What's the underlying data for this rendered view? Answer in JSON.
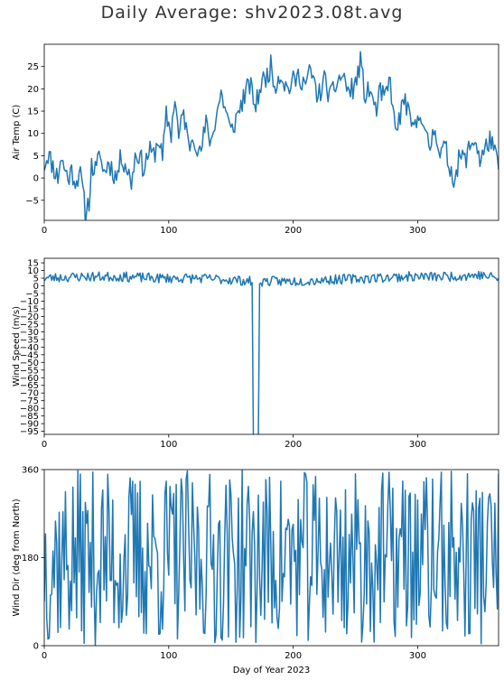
{
  "figure": {
    "title": "Daily Average: shv2023.08t.avg"
  },
  "colors": {
    "line": "#1f77b4",
    "axes": "#000000",
    "background": "#ffffff"
  },
  "chart_data": [
    {
      "type": "line",
      "ylabel": "Air Temp (C)",
      "xlabel": "",
      "xlim": [
        0,
        365
      ],
      "ylim": [
        -9.5,
        30
      ],
      "xticks": [
        0,
        100,
        200,
        300
      ],
      "yticks": [
        -5,
        0,
        5,
        10,
        15,
        20,
        25
      ],
      "grid": false,
      "shape_knots": [
        [
          0,
          3
        ],
        [
          3,
          5.5
        ],
        [
          8,
          2
        ],
        [
          11,
          0
        ],
        [
          13,
          4.5
        ],
        [
          16,
          2.5
        ],
        [
          19,
          0
        ],
        [
          22,
          1.5
        ],
        [
          26,
          -1
        ],
        [
          28,
          2
        ],
        [
          31,
          -3
        ],
        [
          33,
          -8
        ],
        [
          36,
          -5
        ],
        [
          38,
          2.5
        ],
        [
          42,
          1.5
        ],
        [
          45,
          6.5
        ],
        [
          47,
          1
        ],
        [
          52,
          3.5
        ],
        [
          58,
          0
        ],
        [
          62,
          5
        ],
        [
          66,
          2.5
        ],
        [
          70,
          -1
        ],
        [
          73,
          5
        ],
        [
          76,
          5.5
        ],
        [
          80,
          2
        ],
        [
          84,
          6
        ],
        [
          88,
          5
        ],
        [
          92,
          9
        ],
        [
          95,
          4
        ],
        [
          98,
          14
        ],
        [
          102,
          10
        ],
        [
          105,
          18.5
        ],
        [
          108,
          9
        ],
        [
          112,
          15
        ],
        [
          116,
          7
        ],
        [
          120,
          10
        ],
        [
          125,
          5
        ],
        [
          130,
          12
        ],
        [
          134,
          8
        ],
        [
          138,
          14
        ],
        [
          142,
          19
        ],
        [
          146,
          15
        ],
        [
          150,
          10
        ],
        [
          155,
          14
        ],
        [
          160,
          18
        ],
        [
          165,
          21
        ],
        [
          170,
          16
        ],
        [
          174,
          21
        ],
        [
          178,
          22.5
        ],
        [
          182,
          25
        ],
        [
          185,
          21
        ],
        [
          190,
          23.5
        ],
        [
          195,
          20
        ],
        [
          200,
          21.5
        ],
        [
          205,
          23
        ],
        [
          210,
          21
        ],
        [
          214,
          24
        ],
        [
          220,
          18
        ],
        [
          225,
          22
        ],
        [
          230,
          18
        ],
        [
          236,
          22
        ],
        [
          240,
          23
        ],
        [
          245,
          19
        ],
        [
          250,
          21
        ],
        [
          254,
          26
        ],
        [
          258,
          18
        ],
        [
          262,
          20
        ],
        [
          266,
          15
        ],
        [
          270,
          19
        ],
        [
          274,
          18
        ],
        [
          278,
          22
        ],
        [
          282,
          10
        ],
        [
          286,
          14
        ],
        [
          290,
          18
        ],
        [
          294,
          12
        ],
        [
          298,
          11
        ],
        [
          302,
          16
        ],
        [
          306,
          9
        ],
        [
          310,
          7
        ],
        [
          314,
          12
        ],
        [
          318,
          5
        ],
        [
          322,
          7
        ],
        [
          326,
          2
        ],
        [
          330,
          0
        ],
        [
          334,
          5
        ],
        [
          338,
          4
        ],
        [
          342,
          7
        ],
        [
          346,
          9
        ],
        [
          350,
          4
        ],
        [
          354,
          6
        ],
        [
          358,
          9
        ],
        [
          362,
          5
        ],
        [
          365,
          3
        ]
      ],
      "noise_amplitude": 2.6,
      "seed": 11
    },
    {
      "type": "line",
      "ylabel": "Wind Speed (m/s)",
      "xlabel": "",
      "xlim": [
        0,
        365
      ],
      "ylim": [
        -97,
        18
      ],
      "xticks": [
        0,
        100,
        200,
        300
      ],
      "yticks": [
        15,
        10,
        5,
        0,
        -5,
        -10,
        -15,
        -20,
        -25,
        -30,
        -35,
        -40,
        -45,
        -50,
        -55,
        -60,
        -65,
        -70,
        -75,
        -80,
        -85,
        -90,
        -95
      ],
      "grid": false,
      "shape_knots": [
        [
          0,
          5
        ],
        [
          30,
          6
        ],
        [
          60,
          6
        ],
        [
          90,
          5
        ],
        [
          120,
          5
        ],
        [
          150,
          4
        ],
        [
          165,
          3
        ],
        [
          170,
          3
        ],
        [
          200,
          3
        ],
        [
          230,
          4
        ],
        [
          260,
          5
        ],
        [
          290,
          6
        ],
        [
          320,
          6
        ],
        [
          350,
          7
        ],
        [
          365,
          5
        ]
      ],
      "noise_amplitude": 3.2,
      "missing_segment": {
        "x": [
          168,
          172
        ],
        "value": -99
      },
      "seed": 23
    },
    {
      "type": "line",
      "ylabel": "Wind Dir (deg from North)",
      "xlabel": "Day of Year 2023",
      "xlim": [
        0,
        365
      ],
      "ylim": [
        0,
        360
      ],
      "xticks": [
        0,
        100,
        200,
        300
      ],
      "yticks": [
        0,
        180,
        360
      ],
      "grid": false,
      "kind": "random_0_360",
      "seed": 37
    }
  ]
}
